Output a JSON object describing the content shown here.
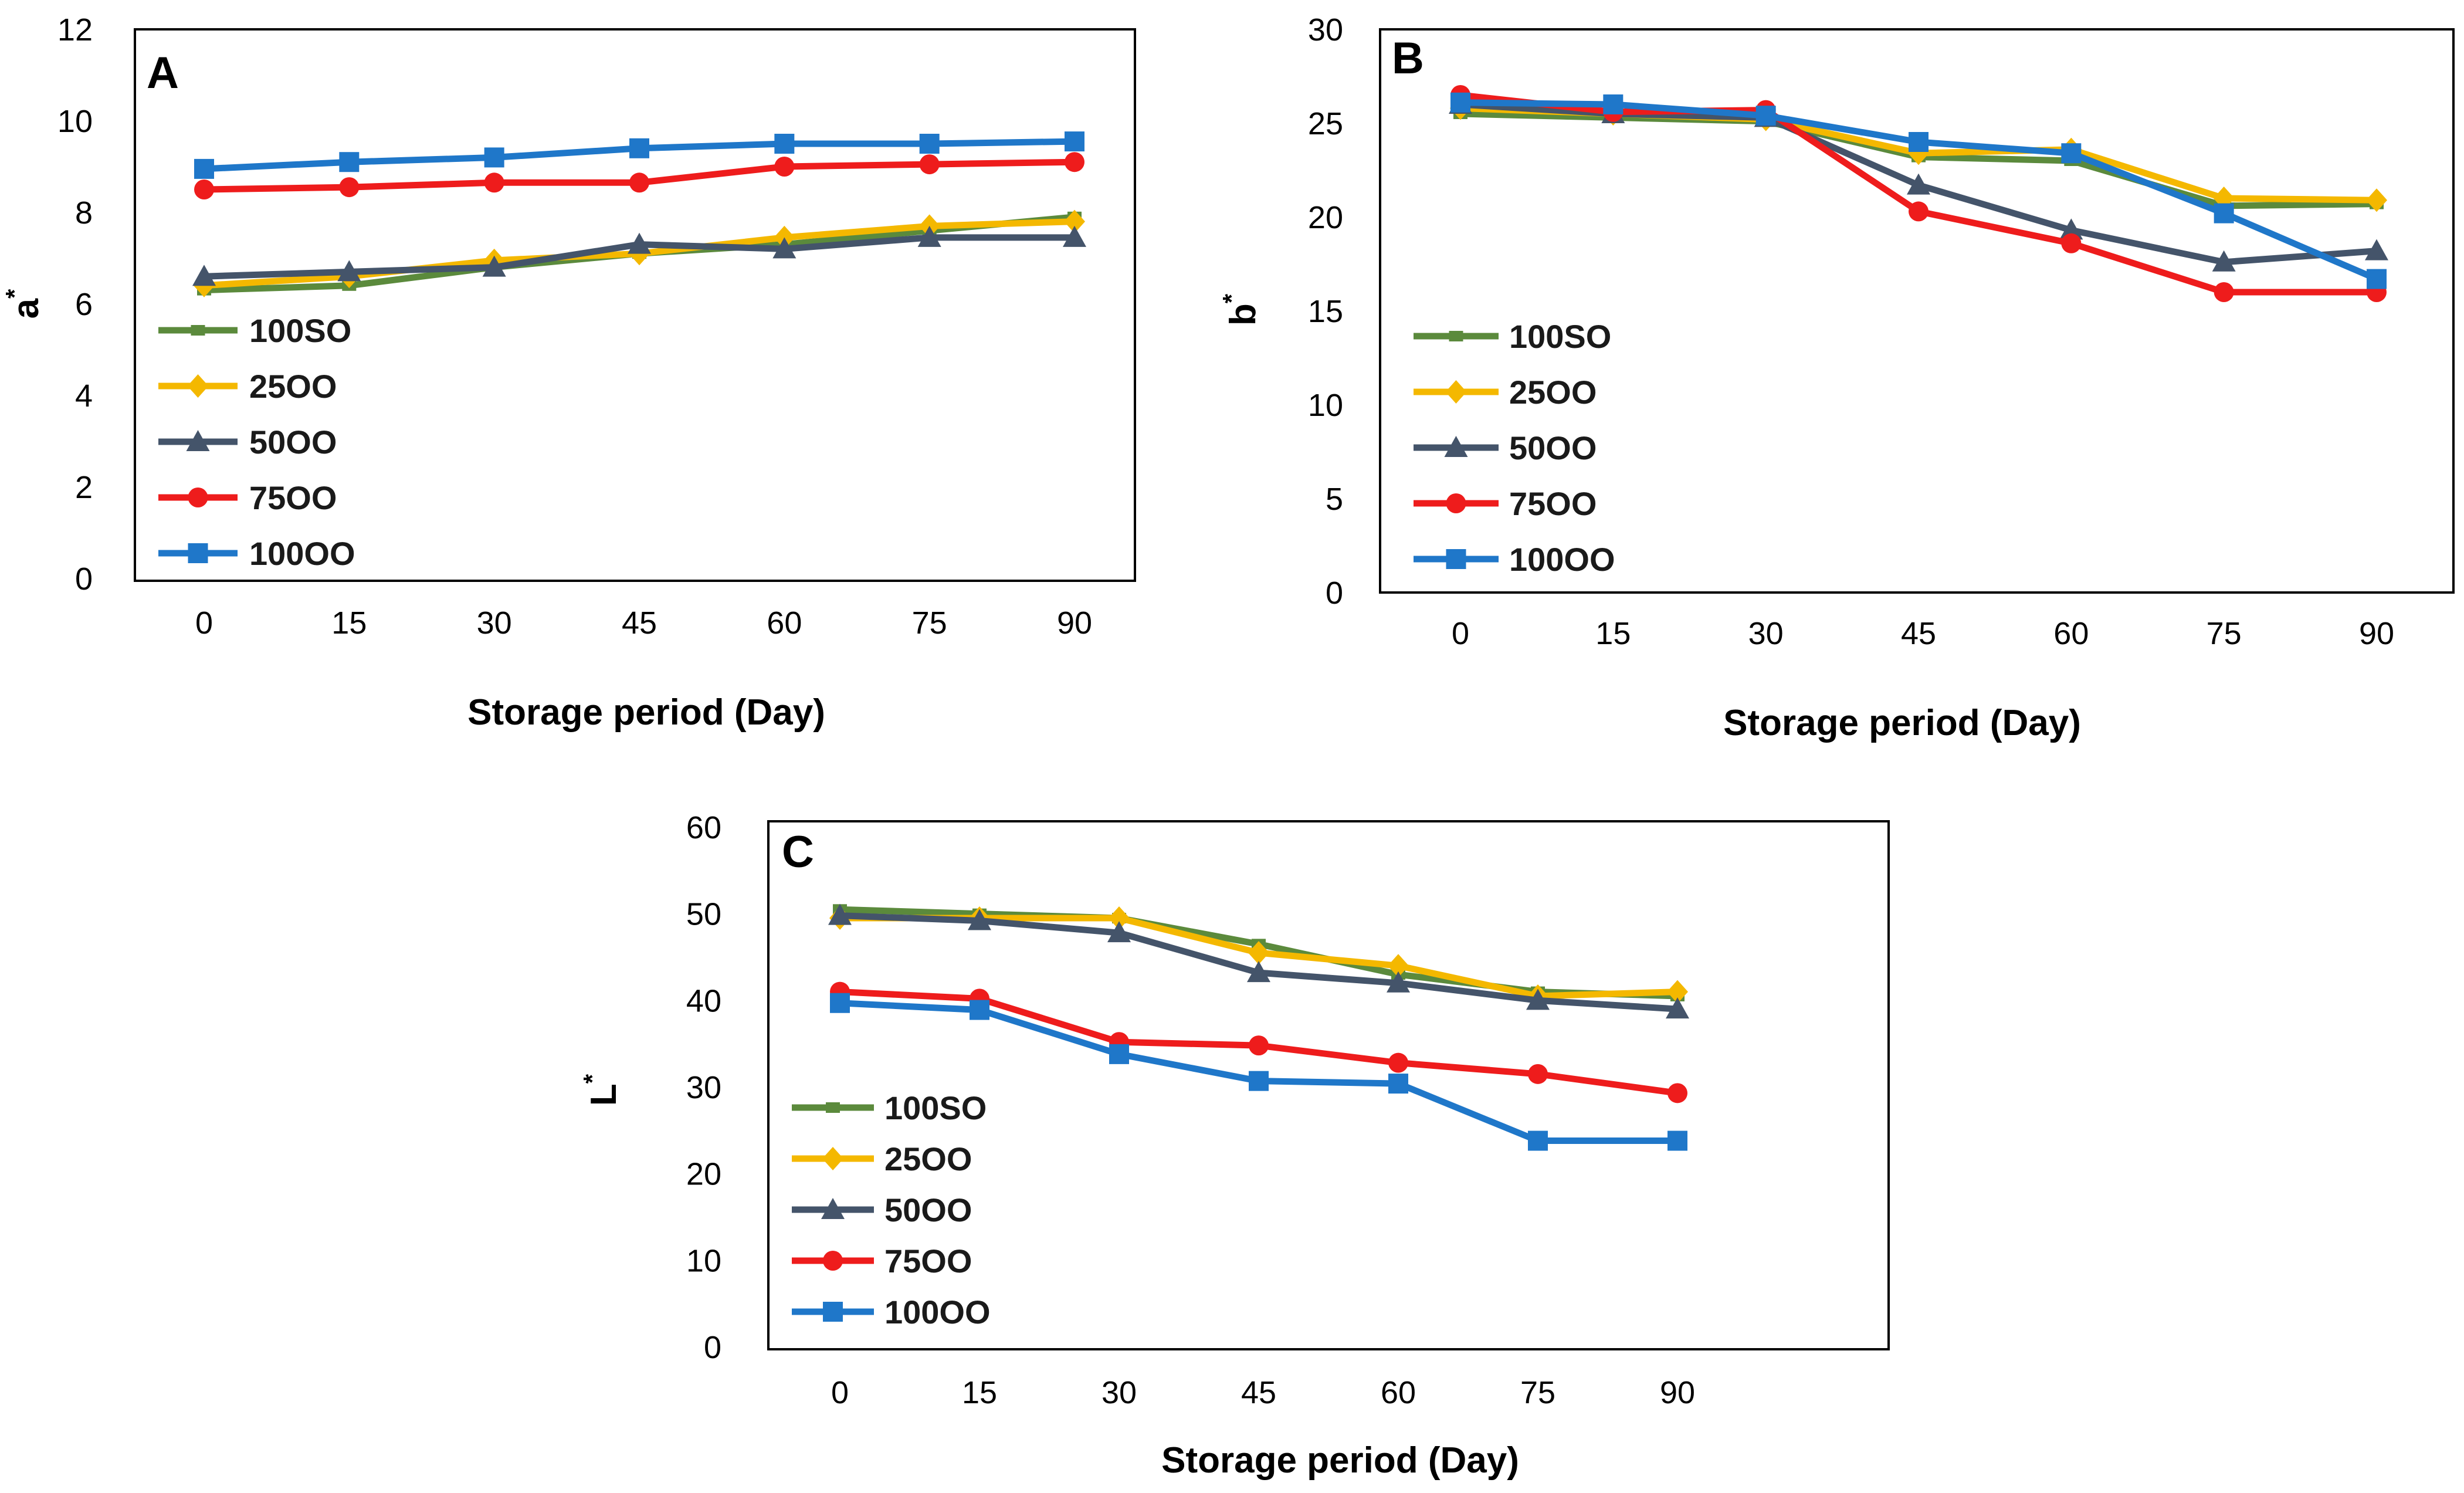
{
  "chart_data": [
    {
      "id": "A",
      "type": "line",
      "title": "A",
      "xlabel": "Storage period (Day)",
      "ylabel": "a*",
      "ylabel_main": "a",
      "ylabel_sup": "*",
      "categories": [
        "0",
        "15",
        "30",
        "45",
        "60",
        "75",
        "90"
      ],
      "ylim": [
        0,
        12
      ],
      "yticks": [
        0,
        2,
        4,
        6,
        8,
        10,
        12
      ],
      "legend_position": "left",
      "series": [
        {
          "name": "100SO",
          "color": "#5B8A3C",
          "marker": "dash",
          "values": [
            6.3,
            6.4,
            6.8,
            7.1,
            7.3,
            7.6,
            7.9
          ]
        },
        {
          "name": "25OO",
          "color": "#F4B800",
          "marker": "diamond",
          "values": [
            6.4,
            6.6,
            6.95,
            7.1,
            7.45,
            7.7,
            7.8
          ]
        },
        {
          "name": "50OO",
          "color": "#44546A",
          "marker": "triangle",
          "values": [
            6.6,
            6.7,
            6.8,
            7.3,
            7.2,
            7.45,
            7.45
          ]
        },
        {
          "name": "75OO",
          "color": "#EE1C1C",
          "marker": "circle",
          "values": [
            8.5,
            8.55,
            8.65,
            8.65,
            9.0,
            9.05,
            9.1
          ]
        },
        {
          "name": "100OO",
          "color": "#1F77C9",
          "marker": "square",
          "values": [
            8.95,
            9.1,
            9.2,
            9.4,
            9.5,
            9.5,
            9.55
          ]
        }
      ]
    },
    {
      "id": "B",
      "type": "line",
      "title": "B",
      "xlabel": "Storage period (Day)",
      "ylabel": "b*",
      "ylabel_main": "b",
      "ylabel_sup": "*",
      "categories": [
        "0",
        "15",
        "30",
        "45",
        "60",
        "75",
        "90"
      ],
      "ylim": [
        0,
        30
      ],
      "yticks": [
        0,
        5,
        10,
        15,
        20,
        25,
        30
      ],
      "legend_position": "left",
      "series": [
        {
          "name": "100SO",
          "color": "#5B8A3C",
          "marker": "dash",
          "values": [
            25.5,
            25.3,
            25.1,
            23.2,
            23.0,
            20.6,
            20.7
          ]
        },
        {
          "name": "25OO",
          "color": "#F4B800",
          "marker": "diamond",
          "values": [
            25.8,
            25.5,
            25.2,
            23.4,
            23.6,
            21.0,
            20.9
          ]
        },
        {
          "name": "50OO",
          "color": "#44546A",
          "marker": "triangle",
          "values": [
            26.0,
            25.5,
            25.3,
            21.7,
            19.3,
            17.6,
            18.2
          ]
        },
        {
          "name": "75OO",
          "color": "#EE1C1C",
          "marker": "circle",
          "values": [
            26.5,
            25.6,
            25.7,
            20.3,
            18.6,
            16.0,
            16.0
          ]
        },
        {
          "name": "100OO",
          "color": "#1F77C9",
          "marker": "square",
          "values": [
            26.1,
            26.0,
            25.4,
            24.0,
            23.4,
            20.2,
            16.7
          ]
        }
      ]
    },
    {
      "id": "C",
      "type": "line",
      "title": "C",
      "xlabel": "Storage period (Day)",
      "ylabel": "L*",
      "ylabel_main": "L",
      "ylabel_sup": "*",
      "categories": [
        "0",
        "15",
        "30",
        "45",
        "60",
        "75",
        "90"
      ],
      "ylim": [
        0,
        60
      ],
      "yticks": [
        0,
        10,
        20,
        30,
        40,
        50,
        60
      ],
      "legend_position": "left",
      "series": [
        {
          "name": "100SO",
          "color": "#5B8A3C",
          "marker": "dash",
          "values": [
            50.5,
            50.0,
            49.5,
            46.5,
            43.0,
            41.0,
            40.5
          ]
        },
        {
          "name": "25OO",
          "color": "#F4B800",
          "marker": "diamond",
          "values": [
            49.5,
            49.5,
            49.5,
            45.5,
            44.0,
            40.5,
            41.0
          ]
        },
        {
          "name": "50OO",
          "color": "#44546A",
          "marker": "triangle",
          "values": [
            49.8,
            49.2,
            47.8,
            43.2,
            42.0,
            40.0,
            39.0
          ]
        },
        {
          "name": "75OO",
          "color": "#EE1C1C",
          "marker": "circle",
          "values": [
            41.0,
            40.2,
            35.2,
            34.8,
            32.8,
            31.5,
            29.3
          ]
        },
        {
          "name": "100OO",
          "color": "#1F77C9",
          "marker": "square",
          "values": [
            39.7,
            38.9,
            33.8,
            30.7,
            30.4,
            23.8,
            23.8
          ]
        }
      ]
    }
  ]
}
